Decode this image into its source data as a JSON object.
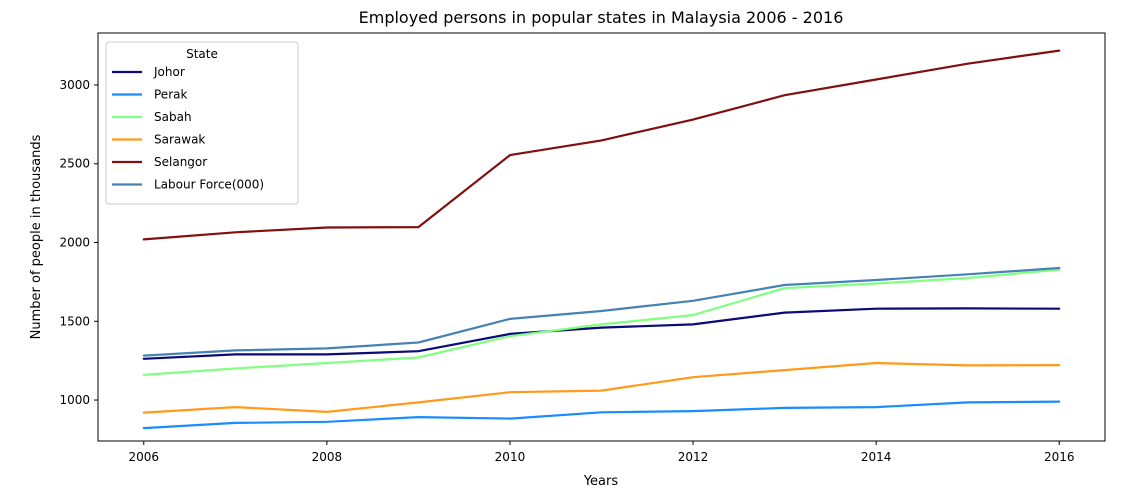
{
  "chart_data": {
    "type": "line",
    "title": "Employed persons in popular states in Malaysia 2006 - 2016",
    "xlabel": "Years",
    "ylabel": "Number of people in thousands",
    "x": [
      2006,
      2007,
      2008,
      2009,
      2010,
      2011,
      2012,
      2013,
      2014,
      2015,
      2016
    ],
    "xlim": [
      2005.5,
      2016.5
    ],
    "ylim": [
      740,
      3330
    ],
    "xticks": [
      2006,
      2008,
      2010,
      2012,
      2014,
      2016
    ],
    "yticks": [
      1000,
      1500,
      2000,
      2500,
      3000
    ],
    "grid": false,
    "legend_title": "State",
    "legend_position": "top-left",
    "series": [
      {
        "name": "Johor",
        "color": "#0a0a78",
        "values": [
          1262,
          1290,
          1290,
          1310,
          1420,
          1460,
          1480,
          1555,
          1580,
          1582,
          1580
        ]
      },
      {
        "name": "Perak",
        "color": "#1a8cff",
        "values": [
          822,
          855,
          862,
          892,
          882,
          922,
          930,
          950,
          955,
          985,
          990
        ]
      },
      {
        "name": "Sabah",
        "color": "#80ff80",
        "values": [
          1160,
          1200,
          1235,
          1270,
          1405,
          1480,
          1540,
          1710,
          1740,
          1775,
          1828
        ]
      },
      {
        "name": "Sarawak",
        "color": "#ff9a1a",
        "values": [
          920,
          955,
          925,
          985,
          1050,
          1060,
          1145,
          1190,
          1235,
          1220,
          1222
        ]
      },
      {
        "name": "Selangor",
        "color": "#801010",
        "values": [
          2020,
          2065,
          2095,
          2098,
          2555,
          2648,
          2780,
          2935,
          3035,
          3135,
          3218
        ]
      },
      {
        "name": "Labour Force(000)",
        "color": "#4682b4",
        "values": [
          1282,
          1315,
          1328,
          1365,
          1515,
          1565,
          1630,
          1730,
          1762,
          1798,
          1838
        ]
      }
    ]
  }
}
